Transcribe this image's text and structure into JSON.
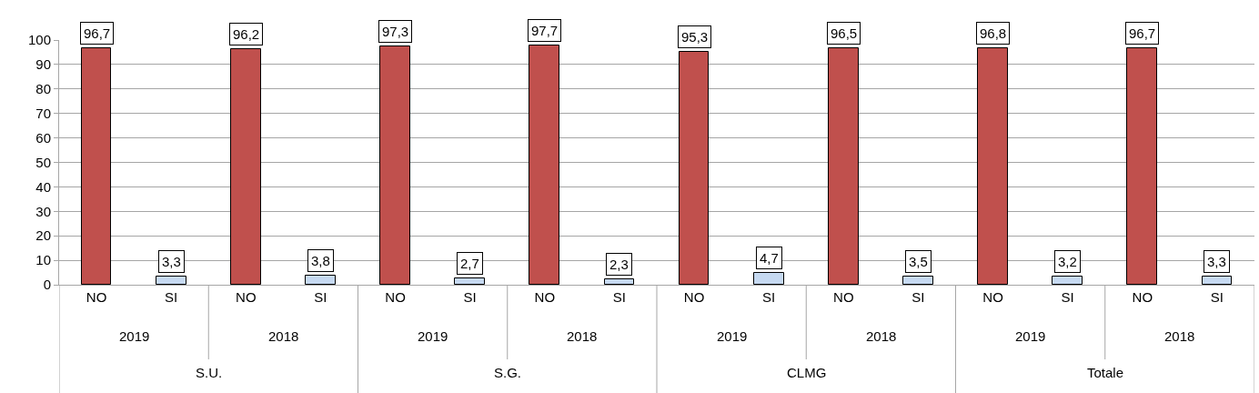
{
  "chart_data": {
    "type": "bar",
    "categories": [
      "NO",
      "SI",
      "NO",
      "SI",
      "NO",
      "SI",
      "NO",
      "SI",
      "NO",
      "SI",
      "NO",
      "SI",
      "NO",
      "SI",
      "NO",
      "SI"
    ],
    "values": [
      96.7,
      3.3,
      96.2,
      3.8,
      97.3,
      2.7,
      97.7,
      2.3,
      95.3,
      4.7,
      96.5,
      3.5,
      96.8,
      3.2,
      96.7,
      3.3
    ],
    "value_labels": [
      "96,7",
      "3,3",
      "96,2",
      "3,8",
      "97,3",
      "2,7",
      "97,7",
      "2,3",
      "95,3",
      "4,7",
      "96,5",
      "3,5",
      "96,8",
      "3,2",
      "96,7",
      "3,3"
    ],
    "colors": [
      "#c0504d",
      "#c6d9f1",
      "#c0504d",
      "#c6d9f1",
      "#c0504d",
      "#c6d9f1",
      "#c0504d",
      "#c6d9f1",
      "#c0504d",
      "#c6d9f1",
      "#c0504d",
      "#c6d9f1",
      "#c0504d",
      "#c6d9f1",
      "#c0504d",
      "#c6d9f1"
    ],
    "annotations": [
      "2019",
      "2018",
      "2019",
      "2018",
      "2019",
      "2018",
      "2019",
      "2018",
      "S.U.",
      "S.G.",
      "CLMG",
      "Totale"
    ],
    "ylim": [
      0,
      100
    ],
    "yticks": [
      0,
      10,
      20,
      30,
      40,
      50,
      60,
      70,
      80,
      90,
      100
    ],
    "grid": "y",
    "legend": false
  }
}
